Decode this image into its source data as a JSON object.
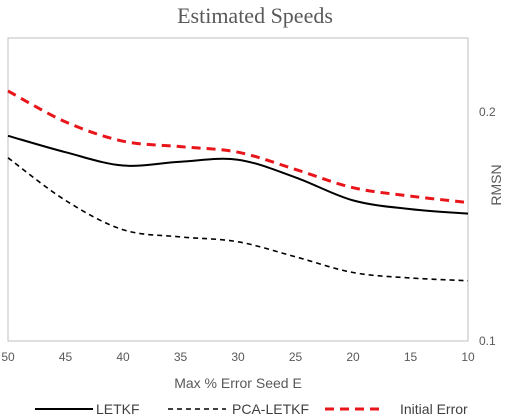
{
  "chart_data": {
    "type": "line",
    "title": "Estimated Speeds",
    "xlabel": "Max % Error Seed E",
    "ylabel": "RMSN",
    "x": [
      50,
      45,
      40,
      35,
      30,
      25,
      20,
      15,
      10
    ],
    "xlim": [
      50,
      10
    ],
    "x_reversed": true,
    "ylim": [
      0.1,
      0.25
    ],
    "y_scale": "log",
    "y_axis_position": "right",
    "yticks": [
      "0.1",
      "0.2"
    ],
    "xticks": [
      "50",
      "45",
      "40",
      "35",
      "30",
      "25",
      "20",
      "15",
      "10"
    ],
    "grid": false,
    "legend_position": "bottom",
    "series": [
      {
        "name": "LETKF",
        "style": "solid",
        "color": "#000000",
        "values": [
          0.186,
          0.177,
          0.17,
          0.172,
          0.173,
          0.164,
          0.153,
          0.149,
          0.147
        ]
      },
      {
        "name": "PCA-LETKF",
        "style": "dashed",
        "color": "#000000",
        "values": [
          0.174,
          0.153,
          0.14,
          0.137,
          0.135,
          0.129,
          0.123,
          0.121,
          0.12
        ]
      },
      {
        "name": "Initial Error",
        "style": "dashed",
        "color": "#e8161b",
        "values": [
          0.213,
          0.194,
          0.183,
          0.18,
          0.177,
          0.168,
          0.159,
          0.155,
          0.152
        ]
      }
    ]
  }
}
